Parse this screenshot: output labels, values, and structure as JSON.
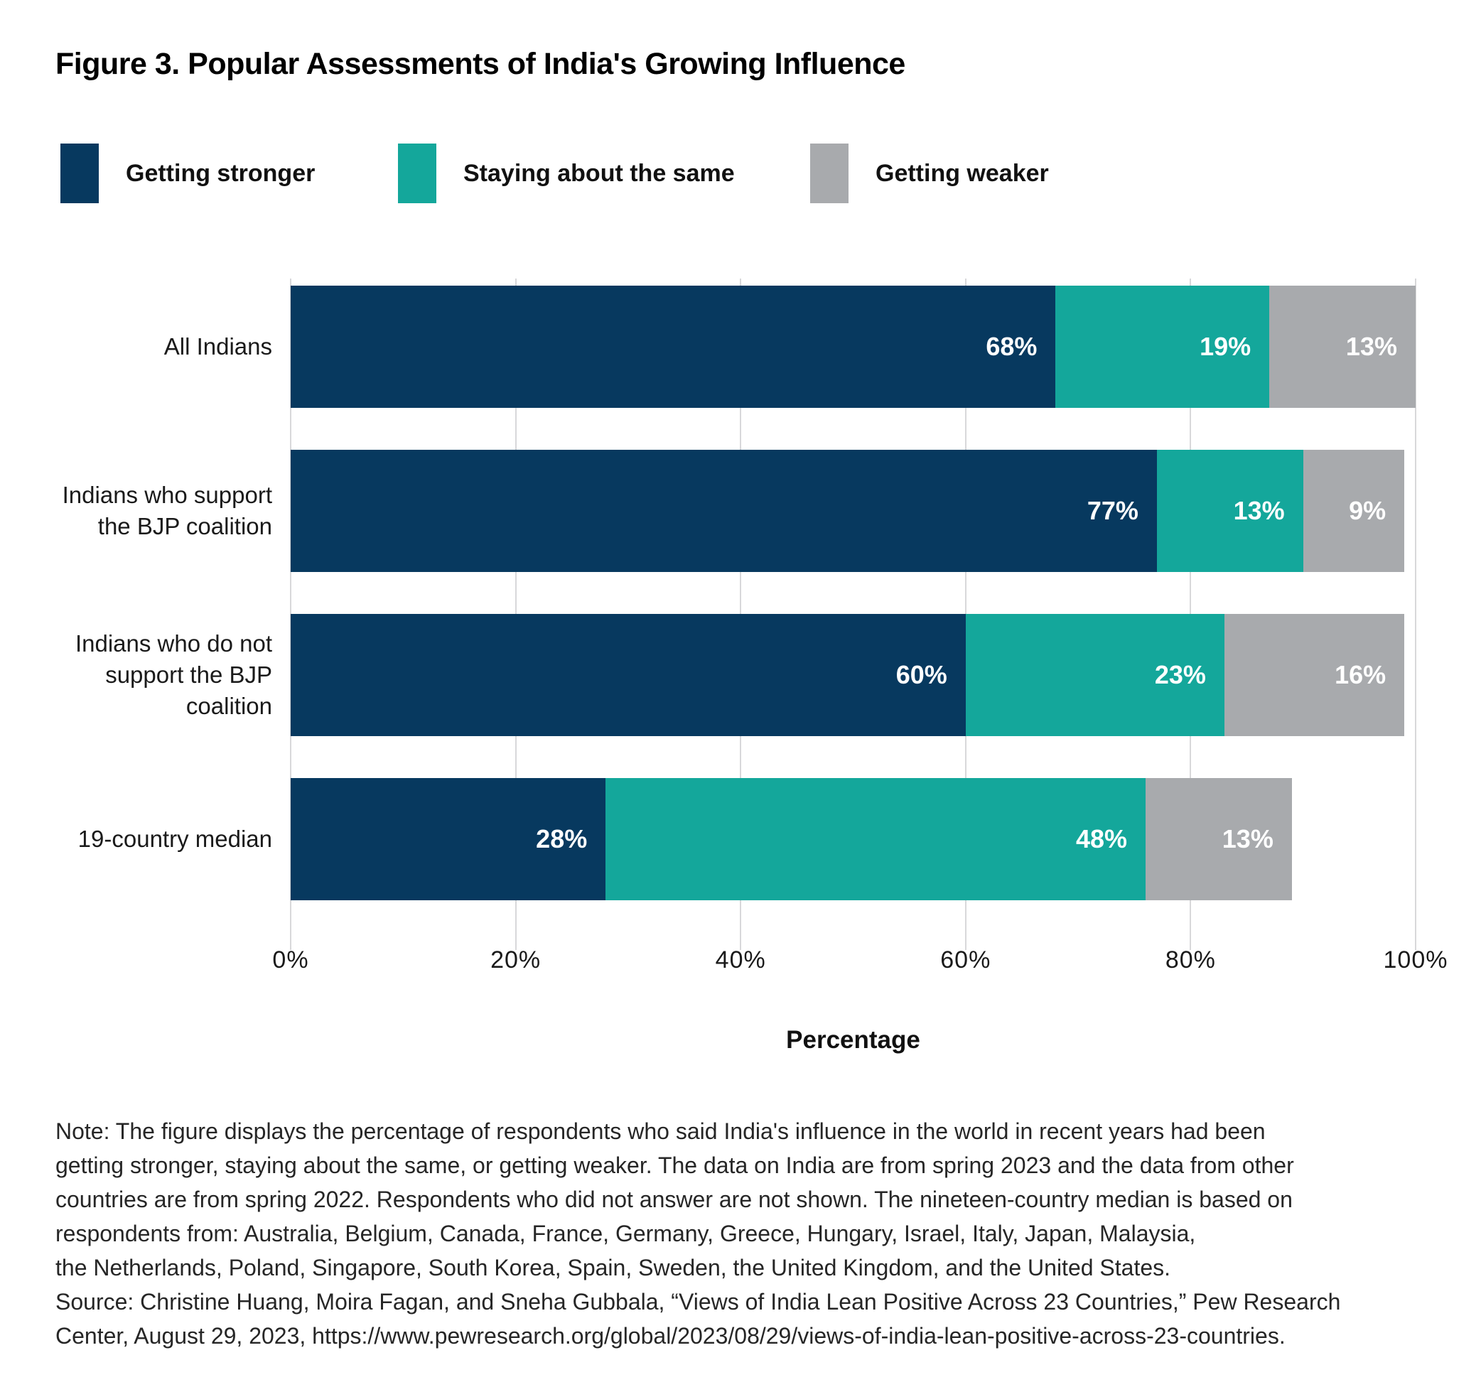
{
  "title": "Figure 3. Popular Assessments of India's Growing Influence",
  "legend": [
    {
      "label": "Getting stronger",
      "color": "#07395f"
    },
    {
      "label": "Staying about the same",
      "color": "#14a79b"
    },
    {
      "label": "Getting weaker",
      "color": "#a8aaad"
    }
  ],
  "chart_data": {
    "type": "bar",
    "subtype": "horizontal-stacked",
    "title": "Figure 3. Popular Assessments of India's Growing Influence",
    "categories": [
      "All Indians",
      "Indians who support\nthe BJP coalition",
      "Indians who do not\nsupport the BJP coalition",
      "19-country median"
    ],
    "series": [
      {
        "name": "Getting stronger",
        "color": "#07395f",
        "values": [
          68,
          77,
          60,
          28
        ]
      },
      {
        "name": "Staying about the same",
        "color": "#14a79b",
        "values": [
          19,
          13,
          23,
          48
        ]
      },
      {
        "name": "Getting weaker",
        "color": "#a8aaad",
        "values": [
          13,
          9,
          16,
          13
        ]
      }
    ],
    "value_label_format": "{v}%",
    "xlabel": "Percentage",
    "xlim": [
      0,
      100
    ],
    "x_ticks": [
      "0%",
      "20%",
      "40%",
      "60%",
      "80%",
      "100%"
    ],
    "grid": "vertical",
    "legend_position": "top"
  },
  "note_lines": [
    "Note: The figure displays the percentage of respondents who said India's influence in the world in recent years had been",
    "getting stronger, staying about the same, or getting weaker. The data on India are from spring 2023 and the data from other",
    "countries are from spring 2022. Respondents who did not answer are not shown. The nineteen-country median is based on",
    "respondents from: Australia, Belgium, Canada, France, Germany, Greece, Hungary, Israel, Italy, Japan, Malaysia,",
    "the Netherlands, Poland, Singapore, South Korea, Spain, Sweden, the United Kingdom, and the United States.",
    "Source: Christine Huang, Moira Fagan, and Sneha Gubbala, “Views of India Lean Positive Across 23 Countries,” Pew Research",
    "Center, August 29, 2023, https://www.pewresearch.org/global/2023/08/29/views-of-india-lean-positive-across-23-countries."
  ],
  "colors": {
    "grid": "#d8d8da",
    "value_label": "#ffffff",
    "text": "#1a1a1a",
    "note_text": "#262626"
  }
}
